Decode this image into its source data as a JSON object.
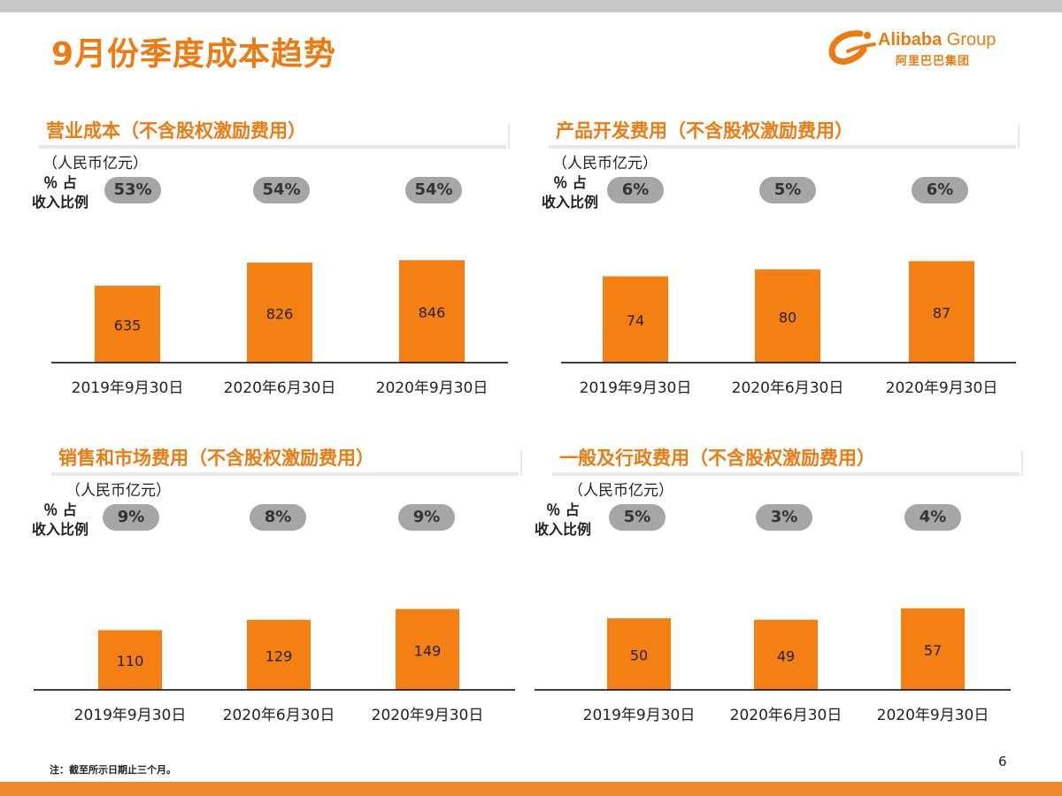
{
  "slide": {
    "title": "9月份季度成本趋势",
    "footnote": "注：截至所示日期止三个月。",
    "page_number": "6"
  },
  "logo": {
    "name_bold": "Alibaba",
    "name_light": " Group",
    "name_cn": "阿里巴巴集团",
    "color": "#ee7a12"
  },
  "colors": {
    "accent": "#ee7a12",
    "bar": "#f47f12",
    "pill": "#a6a6a6",
    "axis": "#000000"
  },
  "share_label": {
    "line1": "％ 占",
    "line2": "收入比例"
  },
  "chart_data": [
    {
      "type": "bar",
      "title": "营业成本（不含股权激励费用）",
      "ylabel": "（人民币亿元）",
      "categories": [
        "2019年9月30日",
        "2020年6月30日",
        "2020年9月30日"
      ],
      "values": [
        635,
        826,
        846
      ],
      "value_labels": [
        "635",
        "826",
        "846"
      ],
      "revenue_share": [
        "53%",
        "54%",
        "54%"
      ],
      "ylim": [
        0,
        1300
      ],
      "grid": false,
      "legend": "none"
    },
    {
      "type": "bar",
      "title": "产品开发费用（不含股权激励费用）",
      "ylabel": "（人民币亿元）",
      "categories": [
        "2019年9月30日",
        "2020年6月30日",
        "2020年9月30日"
      ],
      "values": [
        74,
        80,
        87
      ],
      "value_labels": [
        "74",
        "80",
        "87"
      ],
      "revenue_share": [
        "6%",
        "5%",
        "6%"
      ],
      "ylim": [
        0,
        135
      ],
      "grid": false,
      "legend": "none"
    },
    {
      "type": "bar",
      "title": "销售和市场费用（不含股权激励费用）",
      "ylabel": "（人民币亿元）",
      "categories": [
        "2019年9月30日",
        "2020年6月30日",
        "2020年9月30日"
      ],
      "values": [
        110,
        129,
        149
      ],
      "value_labels": [
        "110",
        "129",
        "149"
      ],
      "revenue_share": [
        "9%",
        "8%",
        "9%"
      ],
      "ylim": [
        0,
        290
      ],
      "grid": false,
      "legend": "none"
    },
    {
      "type": "bar",
      "title": "一般及行政费用（不含股权激励费用）",
      "ylabel": "（人民币亿元）",
      "categories": [
        "2019年9月30日",
        "2020年6月30日",
        "2020年9月30日"
      ],
      "values": [
        50,
        49,
        57
      ],
      "value_labels": [
        "50",
        "49",
        "57"
      ],
      "revenue_share": [
        "5%",
        "3%",
        "4%"
      ],
      "ylim": [
        0,
        110
      ],
      "grid": false,
      "legend": "none"
    }
  ]
}
